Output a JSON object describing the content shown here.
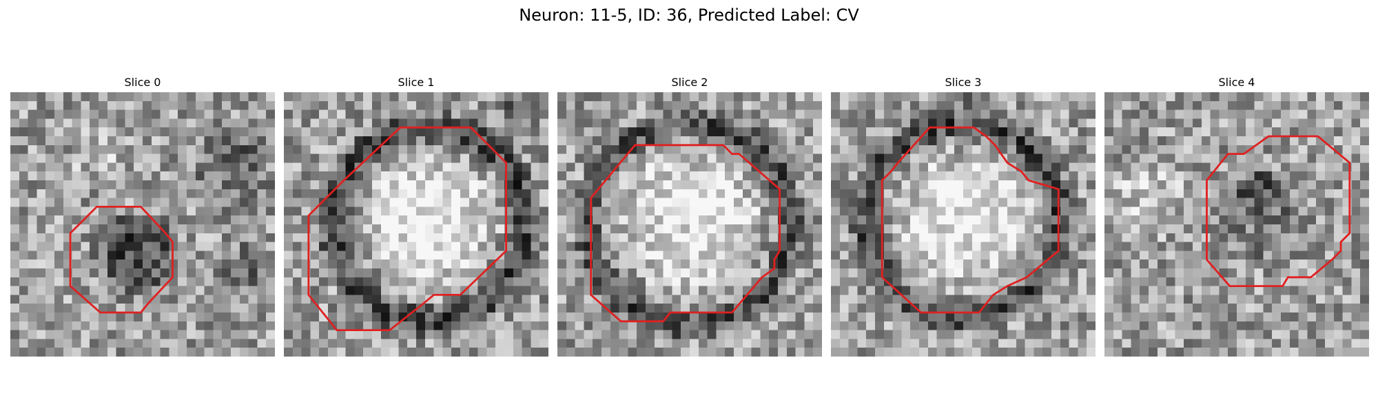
{
  "title": "Neuron: 11-5, ID: 36, Predicted Label: CV",
  "grid_size": 30,
  "outline_color": "#e02020",
  "panels": [
    {
      "title": "Slice 0",
      "seed": 11,
      "disk": {
        "cx": 14.5,
        "cy": 18.5,
        "r": 5.5,
        "delta": -0.35
      },
      "ring": null,
      "dark_blobs": [
        {
          "cx": 25,
          "cy": 8,
          "r": 6,
          "delta": -0.3
        },
        {
          "cx": 27,
          "cy": 20,
          "r": 5,
          "delta": -0.2
        },
        {
          "cx": 10,
          "cy": 7,
          "r": 4,
          "delta": 0.18
        }
      ],
      "outline": [
        [
          6.8,
          16
        ],
        [
          9.8,
          13
        ],
        [
          14.8,
          13
        ],
        [
          17.6,
          16
        ],
        [
          18.4,
          17
        ],
        [
          18.4,
          21
        ],
        [
          15.6,
          24
        ],
        [
          14.8,
          25
        ],
        [
          10.2,
          25
        ],
        [
          6.8,
          22
        ]
      ]
    },
    {
      "title": "Slice 1",
      "seed": 23,
      "disk": {
        "cx": 16.5,
        "cy": 14.5,
        "r": 8.5,
        "delta": 0.32
      },
      "ring": {
        "cx": 16.5,
        "cy": 15,
        "r": 11,
        "w": 2.2,
        "delta": -0.32
      },
      "dark_blobs": [
        {
          "cx": 26,
          "cy": 2,
          "r": 3,
          "delta": -0.25
        }
      ],
      "outline": [
        [
          2.8,
          14
        ],
        [
          6.8,
          10
        ],
        [
          13.2,
          4
        ],
        [
          21.2,
          4
        ],
        [
          25.2,
          8
        ],
        [
          25.2,
          18
        ],
        [
          20.0,
          23
        ],
        [
          17.0,
          23
        ],
        [
          15.8,
          24
        ],
        [
          12.0,
          27
        ],
        [
          6.0,
          27
        ],
        [
          2.8,
          23
        ]
      ]
    },
    {
      "title": "Slice 2",
      "seed": 37,
      "disk": {
        "cx": 15,
        "cy": 14.5,
        "r": 9,
        "delta": 0.28
      },
      "ring": {
        "cx": 15,
        "cy": 15,
        "r": 11.5,
        "w": 2.0,
        "delta": -0.3
      },
      "dark_blobs": [],
      "outline": [
        [
          3.8,
          12
        ],
        [
          8.8,
          6
        ],
        [
          18.8,
          6
        ],
        [
          19.8,
          7
        ],
        [
          20.6,
          7
        ],
        [
          25.2,
          11
        ],
        [
          25.2,
          18
        ],
        [
          24.6,
          19
        ],
        [
          24.6,
          20
        ],
        [
          23.2,
          21
        ],
        [
          19.8,
          25
        ],
        [
          12.8,
          25
        ],
        [
          12.0,
          26
        ],
        [
          7.2,
          26
        ],
        [
          3.8,
          23
        ]
      ]
    },
    {
      "title": "Slice 3",
      "seed": 51,
      "disk": {
        "cx": 15,
        "cy": 14.5,
        "r": 8.5,
        "delta": 0.3
      },
      "ring": {
        "cx": 15,
        "cy": 14.5,
        "r": 11,
        "w": 2.0,
        "delta": -0.32
      },
      "dark_blobs": [
        {
          "cx": 15,
          "cy": 0.5,
          "r": 2,
          "delta": -0.3
        }
      ],
      "outline": [
        [
          5.8,
          10
        ],
        [
          6.8,
          9
        ],
        [
          7.6,
          8
        ],
        [
          11.2,
          4
        ],
        [
          16.2,
          4
        ],
        [
          17.6,
          5
        ],
        [
          18.6,
          6
        ],
        [
          20.0,
          8
        ],
        [
          21.6,
          9
        ],
        [
          22.4,
          10
        ],
        [
          25.8,
          11
        ],
        [
          25.8,
          18
        ],
        [
          22.2,
          21
        ],
        [
          20.0,
          22
        ],
        [
          18.4,
          23
        ],
        [
          16.8,
          25
        ],
        [
          10.2,
          25
        ],
        [
          5.8,
          21
        ]
      ]
    },
    {
      "title": "Slice 4",
      "seed": 68,
      "disk": {
        "cx": 17.5,
        "cy": 14,
        "r": 6,
        "delta": -0.15
      },
      "ring": null,
      "dark_blobs": [
        {
          "cx": 17.5,
          "cy": 11,
          "r": 3.2,
          "delta": -0.25
        },
        {
          "cx": 5,
          "cy": 12,
          "r": 6,
          "delta": 0.2
        }
      ],
      "outline": [
        [
          11.6,
          10
        ],
        [
          14.0,
          7
        ],
        [
          15.8,
          7
        ],
        [
          18.6,
          5
        ],
        [
          24.2,
          5
        ],
        [
          27.8,
          8
        ],
        [
          27.8,
          16
        ],
        [
          26.8,
          17
        ],
        [
          26.8,
          18
        ],
        [
          25.8,
          19
        ],
        [
          23.4,
          21
        ],
        [
          20.8,
          21
        ],
        [
          20.2,
          22
        ],
        [
          14.2,
          22
        ],
        [
          11.6,
          19
        ]
      ]
    }
  ]
}
